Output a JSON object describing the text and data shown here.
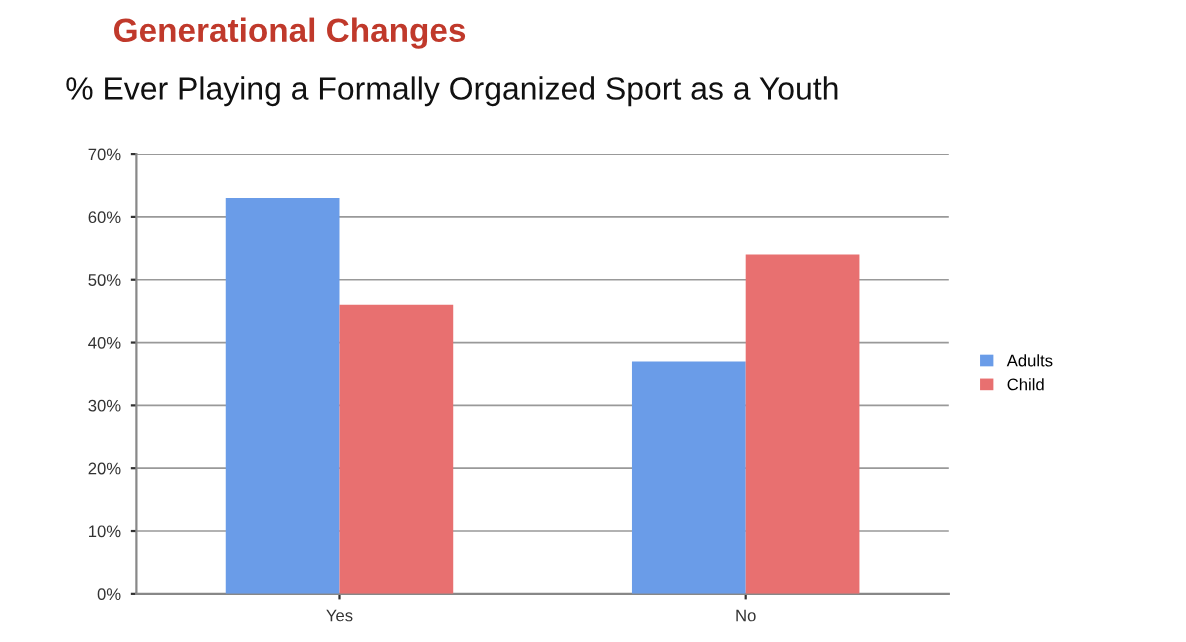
{
  "chart_data": {
    "type": "bar",
    "title": "Generational Changes",
    "subtitle": "% Ever Playing a Formally Organized Sport as a Youth",
    "categories": [
      "Yes",
      "No"
    ],
    "series": [
      {
        "name": "Adults",
        "color": "#6a9ce8",
        "values": [
          63,
          37
        ]
      },
      {
        "name": "Child",
        "color": "#e87070",
        "values": [
          46,
          54
        ]
      }
    ],
    "ylim": [
      0,
      70
    ],
    "yticks": [
      {
        "value": 0,
        "label": "0%"
      },
      {
        "value": 10,
        "label": "10%"
      },
      {
        "value": 20,
        "label": "20%"
      },
      {
        "value": 30,
        "label": "30%"
      },
      {
        "value": 40,
        "label": "40%"
      },
      {
        "value": 50,
        "label": "50%"
      },
      {
        "value": 60,
        "label": "60%"
      },
      {
        "value": 70,
        "label": "70%"
      }
    ],
    "grid": "y",
    "legend": "right"
  }
}
